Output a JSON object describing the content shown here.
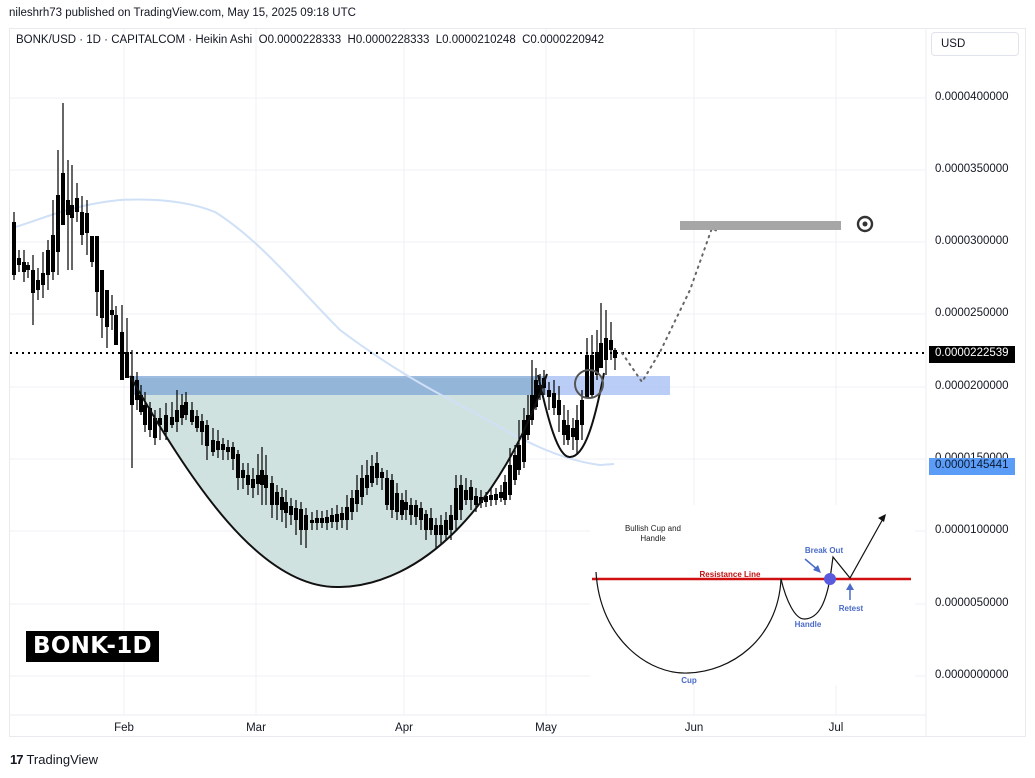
{
  "header": {
    "publish_line": "nileshrh73 published on TradingView.com, May 15, 2025 09:18 UTC",
    "symbol_info": "BONK/USD · 1D · CAPITALCOM · Heikin Ashi",
    "ohlc": {
      "open": "O0.0000228333",
      "high": "H0.0000228333",
      "low": "L0.0000210248",
      "close": "C0.0000220942"
    }
  },
  "currency_button": "USD",
  "price_tags": {
    "last_price": "0.0000222539",
    "ma_value": "0.0000145441",
    "last_price_bg": "#000000",
    "ma_value_bg": "#5b9cf6"
  },
  "watermark": "BONK-1D",
  "footer": {
    "logo_mark": "17",
    "logo_text": "TradingView"
  },
  "inset": {
    "title_line1": "Bullish Cup and",
    "title_line2": "Handle",
    "resistance_label": "Resistance Line",
    "breakout_label": "Break Out",
    "retest_label": "Retest",
    "handle_label": "Handle",
    "cup_label": "Cup"
  },
  "colors": {
    "cup_fill": "#cde0dd",
    "resistance_zone": "#7ea5d6",
    "projection_zone": "#b3c8f5",
    "target_zone": "#a6a6a6",
    "ma_line": "#cfe0f7",
    "resistance_red": "#d01010",
    "inset_blue": "#4a6bc8"
  },
  "chart_data": {
    "type": "candlestick",
    "title": "BONK/USD · 1D · CAPITALCOM · Heikin Ashi",
    "chart_style": "Heikin Ashi",
    "xlabel": "",
    "ylabel": "USD",
    "x_ticks": [
      "Feb",
      "Mar",
      "Apr",
      "May",
      "Jun",
      "Jul"
    ],
    "y_ticks": [
      "0.0000400000",
      "0.0000350000",
      "0.0000300000",
      "0.0000250000",
      "0.0000200000",
      "0.0000150000",
      "0.0000100000",
      "0.0000050000",
      "0.0000000000"
    ],
    "ylim": [
      0,
      4.4e-05
    ],
    "grid": true,
    "last_price": 2.22539e-05,
    "moving_average_last": 1.45441e-05,
    "ohlc_latest": {
      "open": 2.28333e-05,
      "high": 2.28333e-05,
      "low": 2.10248e-05,
      "close": 2.20942e-05
    },
    "approx_series_close": [
      {
        "date": "mid-Jan",
        "value": 2.9e-05
      },
      {
        "date": "Jan peak",
        "value": 3.45e-05
      },
      {
        "date": "late-Jan",
        "value": 2.65e-05
      },
      {
        "date": "Feb 1",
        "value": 2e-05
      },
      {
        "date": "mid-Feb",
        "value": 1.85e-05
      },
      {
        "date": "late-Feb",
        "value": 1.3e-05
      },
      {
        "date": "mid-Mar",
        "value": 1.05e-05
      },
      {
        "date": "late-Mar",
        "value": 1.4e-05
      },
      {
        "date": "early-Apr",
        "value": 1.2e-05
      },
      {
        "date": "Apr 8",
        "value": 9.8e-06
      },
      {
        "date": "mid-Apr",
        "value": 1.25e-05
      },
      {
        "date": "late-Apr",
        "value": 1.95e-05
      },
      {
        "date": "May 3",
        "value": 1.9e-05
      },
      {
        "date": "May 7",
        "value": 1.65e-05
      },
      {
        "date": "May 12",
        "value": 2.3e-05
      },
      {
        "date": "May 15",
        "value": 2.21e-05
      }
    ],
    "annotations": [
      {
        "type": "resistance-zone",
        "from": 1.95e-05,
        "to": 2.07e-05,
        "label": "neckline"
      },
      {
        "type": "cup",
        "bottom": 6.2e-06
      },
      {
        "type": "handle",
        "bottom": 1.51e-05
      },
      {
        "type": "projection-zone",
        "from": 1.95e-05,
        "to": 2.07e-05
      },
      {
        "type": "target-zone",
        "value": 3.1e-05
      },
      {
        "type": "dotted-projection",
        "points": [
          [
            2.2e-05,
            "May 15"
          ],
          [
            2.02e-05,
            "May 20"
          ],
          [
            3.1e-05,
            "late-May"
          ]
        ]
      }
    ]
  }
}
